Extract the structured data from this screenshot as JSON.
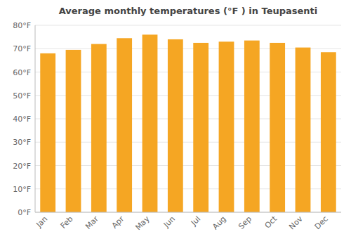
{
  "chart_data": {
    "type": "bar",
    "title": "Average monthly temperatures (°F ) in Teupasenti",
    "categories": [
      "Jan",
      "Feb",
      "Mar",
      "Apr",
      "May",
      "Jun",
      "Jul",
      "Aug",
      "Sep",
      "Oct",
      "Nov",
      "Dec"
    ],
    "values": [
      68,
      69.5,
      72,
      74.5,
      76,
      74,
      72.5,
      73,
      73.5,
      72.5,
      70.5,
      68.5
    ],
    "color": "#F5A623",
    "ylim": [
      0,
      80
    ],
    "yticks": [
      {
        "value": 0,
        "label": "0°F"
      },
      {
        "value": 10,
        "label": "10°F"
      },
      {
        "value": 20,
        "label": "20°F"
      },
      {
        "value": 30,
        "label": "30°F"
      },
      {
        "value": 40,
        "label": "40°F"
      },
      {
        "value": 50,
        "label": "50°F"
      },
      {
        "value": 60,
        "label": "60°F"
      },
      {
        "value": 70,
        "label": "70°F"
      },
      {
        "value": 80,
        "label": "80°F"
      }
    ],
    "grid": true
  }
}
